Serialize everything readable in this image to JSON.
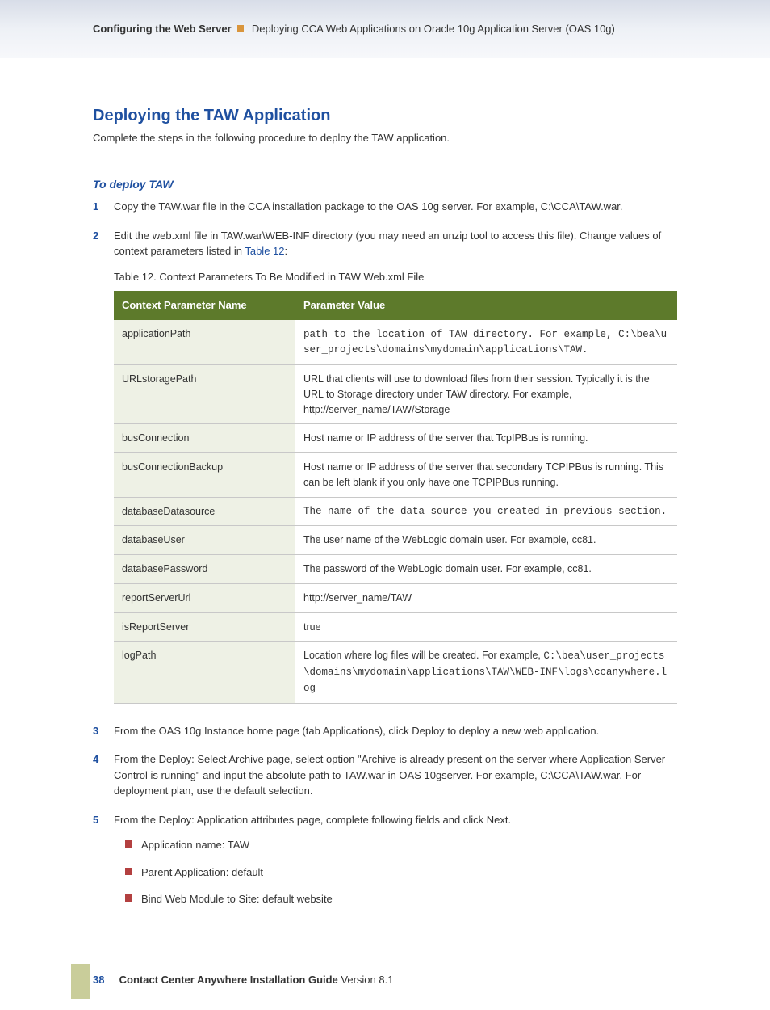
{
  "header": {
    "bold_part": "Configuring the Web Server",
    "rest": "Deploying CCA Web Applications on Oracle 10g Application Server (OAS 10g)"
  },
  "section_title": "Deploying the TAW Application",
  "intro": "Complete the steps in the following procedure to deploy the TAW application.",
  "subsection": "To deploy TAW",
  "steps": {
    "s1": "Copy the TAW.war file in the CCA installation package to the OAS 10g server. For example, C:\\CCA\\TAW.war.",
    "s2_a": "Edit the web.xml file in TAW.war\\WEB-INF directory (you may need an unzip tool to access this file). Change values of context parameters listed in ",
    "s2_link": "Table 12",
    "s2_b": ":",
    "s3": "From the OAS 10g Instance home page (tab Applications), click Deploy to deploy a new web application.",
    "s4": "From the Deploy: Select Archive page, select option \"Archive is already present on the server where Application Server Control is running\" and input the absolute path to TAW.war in OAS 10gserver. For example, C:\\CCA\\TAW.war. For deployment plan, use the default selection.",
    "s5": "From the Deploy: Application attributes page, complete following fields and click Next.",
    "sub1": "Application name: TAW",
    "sub2": "Parent Application: default",
    "sub3": "Bind Web Module to Site: default website"
  },
  "table": {
    "caption": "Table 12.   Context Parameters To Be Modified in TAW Web.xml File",
    "col1": "Context Parameter Name",
    "col2": "Parameter Value",
    "rows": {
      "r0n": "applicationPath",
      "r0v_a": "path to the location of TAW directory. For example, ",
      "r0v_b": "C:\\bea\\user_projects\\domains\\mydomain\\applications\\TAW.",
      "r1n": "URLstoragePath",
      "r1v": "URL that clients will use to download files from their session. Typically it is the URL to Storage directory under TAW directory. For example, http://server_name/TAW/Storage",
      "r2n": "busConnection",
      "r2v": "Host name or IP address of the server that TcpIPBus is running.",
      "r3n": "busConnectionBackup",
      "r3v": "Host name or IP address of the server that secondary TCPIPBus is running. This can be left blank if you only have one TCPIPBus running.",
      "r4n": "databaseDatasource",
      "r4v": "The name of the data source you created in previous section.",
      "r5n": "databaseUser",
      "r5v": "The user name of the WebLogic domain user. For example, cc81.",
      "r6n": "databasePassword",
      "r6v": "The password of the WebLogic domain user. For example, cc81.",
      "r7n": "reportServerUrl",
      "r7v": "http://server_name/TAW",
      "r8n": "isReportServer",
      "r8v": "true",
      "r9n": "logPath",
      "r9v_a": "Location where log files will be created. For example, ",
      "r9v_b": "C:\\bea\\user_projects\\domains\\mydomain\\applications\\TAW\\WEB-INF\\logs\\ccanywhere.log"
    }
  },
  "footer": {
    "page": "38",
    "title_bold": "Contact Center Anywhere Installation Guide ",
    "title_rest": "Version 8.1"
  }
}
